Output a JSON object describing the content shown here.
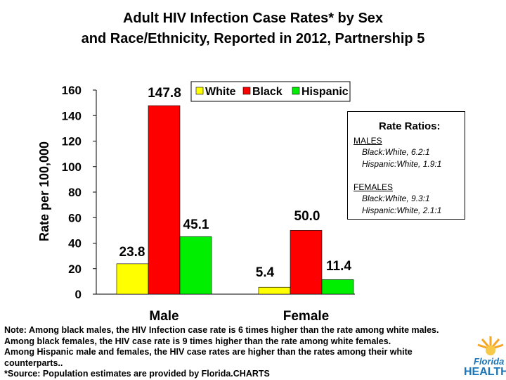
{
  "title_line1": "Adult HIV Infection Case Rates* by Sex",
  "title_line2": "and Race/Ethnicity, Reported in 2012, Partnership 5",
  "chart_data": {
    "type": "bar",
    "categories": [
      "Male",
      "Female"
    ],
    "series": [
      {
        "name": "White",
        "color": "#ffff00",
        "values": [
          23.8,
          5.4
        ],
        "labels": [
          "23.8",
          "5.4"
        ]
      },
      {
        "name": "Black",
        "color": "#ff0000",
        "values": [
          147.8,
          50.0
        ],
        "labels": [
          "147.8",
          "50.0"
        ]
      },
      {
        "name": "Hispanic",
        "color": "#00ee00",
        "values": [
          45.1,
          11.4
        ],
        "labels": [
          "45.1",
          "11.4"
        ]
      }
    ],
    "ylabel": "Rate per 100,000",
    "xlabel": "",
    "ylim": [
      0,
      160
    ],
    "yticks": [
      "0",
      "20",
      "40",
      "60",
      "80",
      "100",
      "120",
      "140",
      "160"
    ],
    "legend_position": "top-right"
  },
  "ratios": {
    "title": "Rate Ratios:",
    "males_head": "MALES",
    "males_black": "Black:White, 6.2:1",
    "males_hispanic": "Hispanic:White, 1.9:1",
    "females_head": "FEMALES",
    "females_black": "Black:White, 9.3:1",
    "females_hispanic": "Hispanic:White, 2.1:1"
  },
  "notes": [
    "Note: Among black males, the HIV Infection case rate is 6 times higher than the rate among white males.",
    "Among black females, the HIV case rate is 9 times higher than the rate among white females.",
    "Among Hispanic male and  females, the HIV case rates are higher than the rates among their white",
    "counterparts..",
    "*Source: Population estimates are provided by Florida.CHARTS"
  ],
  "logo": {
    "line1": "Florida",
    "line2": "HEALTH"
  }
}
